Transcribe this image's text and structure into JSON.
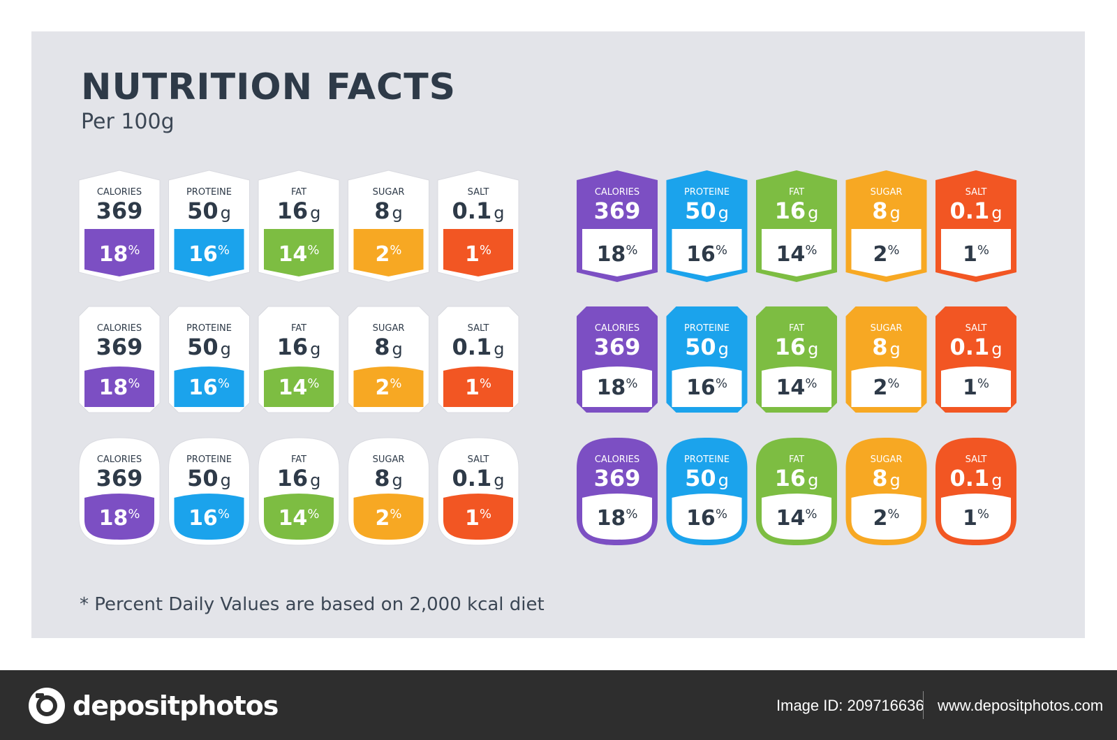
{
  "header": {
    "title": "NUTRITION FACTS",
    "subtitle": "Per 100g"
  },
  "footnote": "* Percent Daily Values are based on 2,000 kcal diet",
  "nutrients": [
    {
      "key": "calories",
      "label": "CALORIES",
      "value": "369",
      "unit": "",
      "percent": "18",
      "color": "#7c4fc3"
    },
    {
      "key": "protein",
      "label": "PROTEINE",
      "value": "50",
      "unit": "g",
      "percent": "16",
      "color": "#1ba3ec"
    },
    {
      "key": "fat",
      "label": "FAT",
      "value": "16",
      "unit": "g",
      "percent": "14",
      "color": "#7dbd42"
    },
    {
      "key": "sugar",
      "label": "SUGAR",
      "value": "8",
      "unit": "g",
      "percent": "2",
      "color": "#f7a823"
    },
    {
      "key": "salt",
      "label": "SALT",
      "value": "0.1",
      "unit": "g",
      "percent": "1",
      "color": "#f25623"
    }
  ],
  "percent_sign": "%",
  "label_sets": [
    {
      "name": "hexagon-white",
      "shape": "hexagon",
      "style": "white"
    },
    {
      "name": "hexagon-colored",
      "shape": "hexagon",
      "style": "colored"
    },
    {
      "name": "tag-white",
      "shape": "tag",
      "style": "white"
    },
    {
      "name": "tag-colored",
      "shape": "tag",
      "style": "colored"
    },
    {
      "name": "rounded-white",
      "shape": "rounded",
      "style": "white"
    },
    {
      "name": "rounded-colored",
      "shape": "rounded",
      "style": "colored"
    }
  ],
  "footer": {
    "brand": "depositphotos",
    "image_id": "Image ID: 209716636",
    "url": "www.depositphotos.com"
  }
}
